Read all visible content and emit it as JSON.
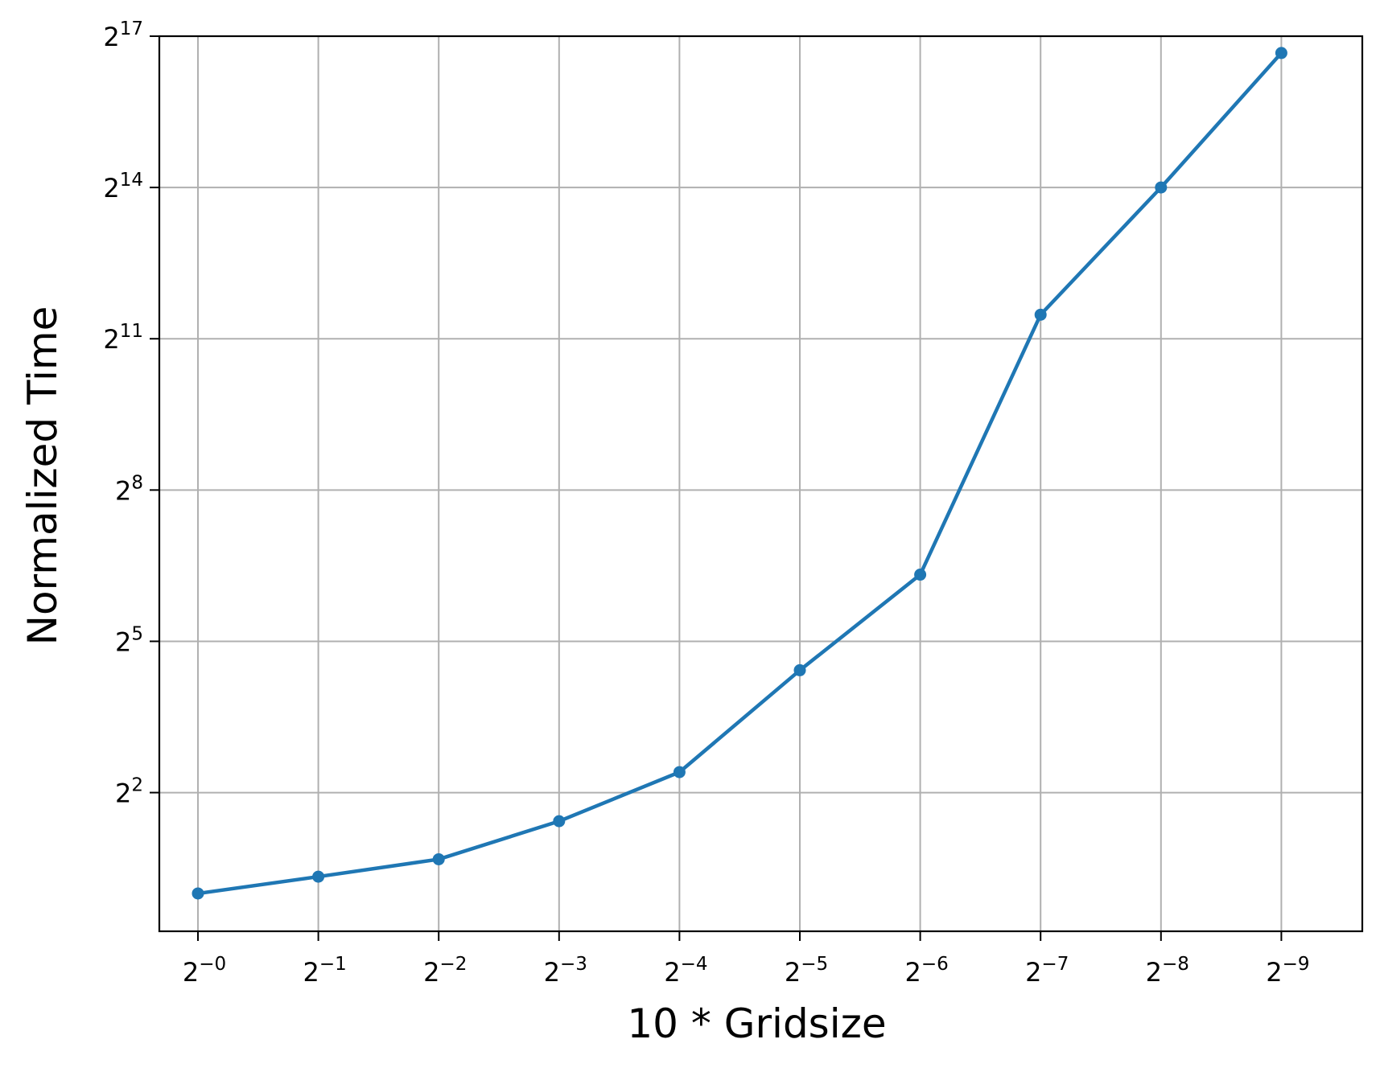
{
  "chart_data": {
    "type": "line",
    "title": "",
    "xlabel": "10 * Gridsize",
    "ylabel": "Normalized Time",
    "x_scale": "log2",
    "y_scale": "log2",
    "x_tick_labels": [
      {
        "base": "2",
        "exp": "−0"
      },
      {
        "base": "2",
        "exp": "−1"
      },
      {
        "base": "2",
        "exp": "−2"
      },
      {
        "base": "2",
        "exp": "−3"
      },
      {
        "base": "2",
        "exp": "−4"
      },
      {
        "base": "2",
        "exp": "−5"
      },
      {
        "base": "2",
        "exp": "−6"
      },
      {
        "base": "2",
        "exp": "−7"
      },
      {
        "base": "2",
        "exp": "−8"
      },
      {
        "base": "2",
        "exp": "−9"
      }
    ],
    "y_tick_labels": [
      {
        "base": "2",
        "exp": "2",
        "value_log2": 2
      },
      {
        "base": "2",
        "exp": "5",
        "value_log2": 5
      },
      {
        "base": "2",
        "exp": "8",
        "value_log2": 8
      },
      {
        "base": "2",
        "exp": "11",
        "value_log2": 11
      },
      {
        "base": "2",
        "exp": "14",
        "value_log2": 14
      },
      {
        "base": "2",
        "exp": "17",
        "value_log2": 17
      }
    ],
    "ylim_log2": [
      -0.75,
      17
    ],
    "grid": true,
    "series": [
      {
        "color": "#1f77b4",
        "marker": "circle",
        "x": [
          1,
          0.5,
          0.25,
          0.125,
          0.0625,
          0.03125,
          0.015625,
          0.0078125,
          0.00390625,
          0.001953125
        ],
        "y": [
          1.0,
          1.26,
          1.6,
          2.7,
          5.3,
          21.5,
          80,
          2850,
          16384,
          104000
        ]
      }
    ]
  }
}
